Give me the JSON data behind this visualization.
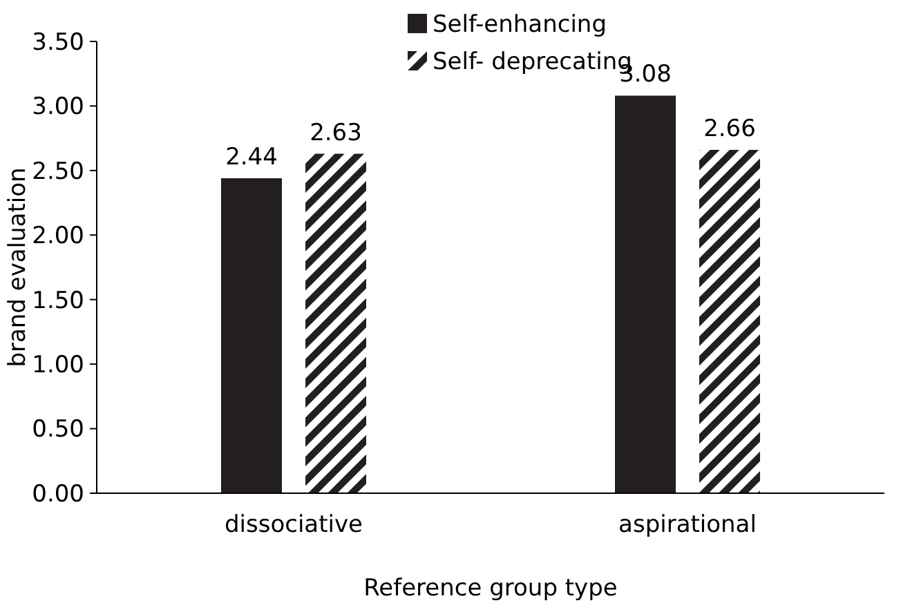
{
  "chart_data": {
    "type": "bar",
    "xlabel": "Reference group type",
    "ylabel": "brand evaluation",
    "categories": [
      "dissociative",
      "aspirational"
    ],
    "series": [
      {
        "name": "Self-enhancing",
        "color": "#231f20",
        "values": [
          2.44,
          3.08
        ]
      },
      {
        "name": "Self- deprecating",
        "color": "#231f20",
        "values": [
          2.63,
          2.66
        ]
      }
    ],
    "ylim": [
      0,
      3.5
    ],
    "yticks": [
      {
        "value": 0,
        "label": "0.00"
      },
      {
        "value": 0.5,
        "label": "0.50"
      },
      {
        "value": 1,
        "label": "1.00"
      },
      {
        "value": 1.5,
        "label": "1.50"
      },
      {
        "value": 2,
        "label": "2.00"
      },
      {
        "value": 2.5,
        "label": "2.50"
      },
      {
        "value": 3,
        "label": "3.00"
      },
      {
        "value": 3.5,
        "label": "3.50"
      }
    ],
    "data_labels": true,
    "legend": "top",
    "grid": false
  }
}
